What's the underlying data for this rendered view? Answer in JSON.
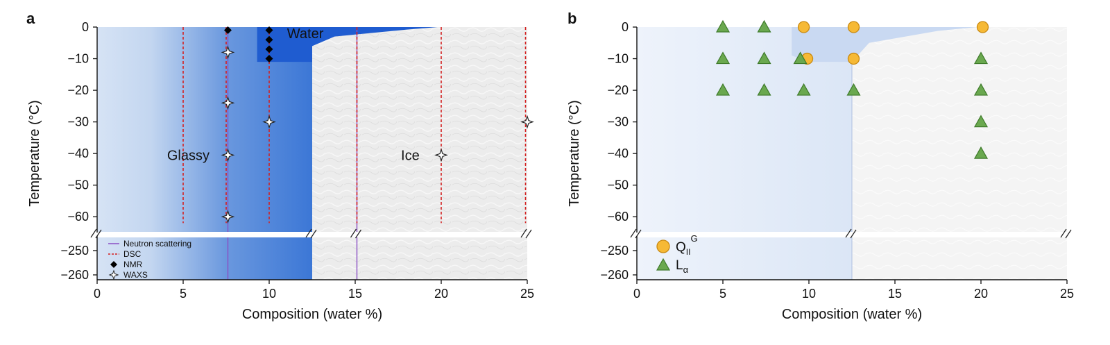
{
  "chart_data": [
    {
      "panel_label": "a",
      "type": "phase-diagram",
      "xlabel": "Composition (water %)",
      "ylabel": "Temperature (°C)",
      "xlim": [
        0,
        25
      ],
      "ylim_upper": [
        -65,
        0
      ],
      "ylim_lower": [
        -262,
        -244
      ],
      "xticks": [
        "0",
        "5",
        "10",
        "15",
        "20",
        "25"
      ],
      "yticks_upper": [
        "0",
        "−10",
        "−20",
        "−30",
        "−40",
        "−50",
        "−60"
      ],
      "yticks_lower": [
        "−250",
        "−260"
      ],
      "regions": [
        {
          "label": "Glassy",
          "label_at": [
            5.3,
            -42
          ],
          "color": "#c7daf2",
          "x_range": [
            0,
            12.5
          ]
        },
        {
          "label": "Water",
          "label_at": [
            12.1,
            -3.5
          ],
          "color": "#1f5cd0",
          "boundary": [
            [
              9.3,
              0
            ],
            [
              9.3,
              -11
            ],
            [
              12.5,
              -11
            ],
            [
              12.5,
              -6
            ],
            [
              13.8,
              -3
            ],
            [
              18,
              -0.8
            ],
            [
              19.8,
              0
            ]
          ]
        },
        {
          "label": "Ice",
          "label_at": [
            18.2,
            -42
          ],
          "color": "#ededed",
          "x_range": [
            12.5,
            25
          ]
        }
      ],
      "neutron_scattering_x": [
        7.6,
        15.1
      ],
      "dsc_x": [
        5,
        7.5,
        10,
        15.1,
        20,
        24.9
      ],
      "dsc_range": [
        -62,
        0
      ],
      "nmr_points": [
        {
          "x": 7.6,
          "y": -1
        },
        {
          "x": 10,
          "y": -1
        },
        {
          "x": 10,
          "y": -4
        },
        {
          "x": 10,
          "y": -7
        },
        {
          "x": 10,
          "y": -10
        }
      ],
      "waxs_points": [
        {
          "x": 7.6,
          "y": -8
        },
        {
          "x": 7.6,
          "y": -24
        },
        {
          "x": 7.6,
          "y": -40.5
        },
        {
          "x": 7.6,
          "y": -60
        },
        {
          "x": 10,
          "y": -30
        },
        {
          "x": 20,
          "y": -40.5
        },
        {
          "x": 25,
          "y": -30
        }
      ],
      "legend": [
        {
          "label": "Neutron scattering",
          "symbol": "line",
          "color": "#8b4fc4"
        },
        {
          "label": "DSC",
          "symbol": "dashed-line",
          "color": "#d42020"
        },
        {
          "label": "NMR",
          "symbol": "diamond",
          "color": "#000000"
        },
        {
          "label": "WAXS",
          "symbol": "star",
          "color": "#000000"
        }
      ],
      "legend_position": "bottom-left"
    },
    {
      "panel_label": "b",
      "type": "scatter",
      "xlabel": "Composition (water %)",
      "ylabel": "Temperature (°C)",
      "xlim": [
        0,
        25
      ],
      "ylim_upper": [
        -65,
        0
      ],
      "ylim_lower": [
        -262,
        -244
      ],
      "xticks": [
        "0",
        "5",
        "10",
        "15",
        "20",
        "25"
      ],
      "yticks_upper": [
        "0",
        "−10",
        "−20",
        "−30",
        "−40",
        "−50",
        "−60"
      ],
      "yticks_lower": [
        "−250",
        "−260"
      ],
      "series": [
        {
          "name": "QII",
          "superscript": "G",
          "marker": "circle",
          "color": "#f6b935",
          "points": [
            {
              "x": 9.7,
              "y": 0
            },
            {
              "x": 12.6,
              "y": 0
            },
            {
              "x": 20.1,
              "y": 0
            },
            {
              "x": 9.9,
              "y": -10
            },
            {
              "x": 12.6,
              "y": -10
            }
          ]
        },
        {
          "name": "L",
          "subscript": "α",
          "marker": "triangle",
          "color": "#6aa84f",
          "points": [
            {
              "x": 5,
              "y": 0
            },
            {
              "x": 7.4,
              "y": 0
            },
            {
              "x": 5,
              "y": -10
            },
            {
              "x": 7.4,
              "y": -10
            },
            {
              "x": 9.5,
              "y": -10
            },
            {
              "x": 5,
              "y": -20
            },
            {
              "x": 7.4,
              "y": -20
            },
            {
              "x": 9.7,
              "y": -20
            },
            {
              "x": 12.6,
              "y": -20
            },
            {
              "x": 20,
              "y": -10
            },
            {
              "x": 20,
              "y": -20
            },
            {
              "x": 20,
              "y": -30
            },
            {
              "x": 20,
              "y": -40
            }
          ]
        }
      ],
      "regions": [
        {
          "color": "#dfe9f7",
          "x_range": [
            0,
            12.5
          ]
        },
        {
          "color": "#f3f3f3",
          "x_range": [
            12.5,
            25
          ]
        }
      ],
      "legend_position": "bottom-left"
    }
  ]
}
